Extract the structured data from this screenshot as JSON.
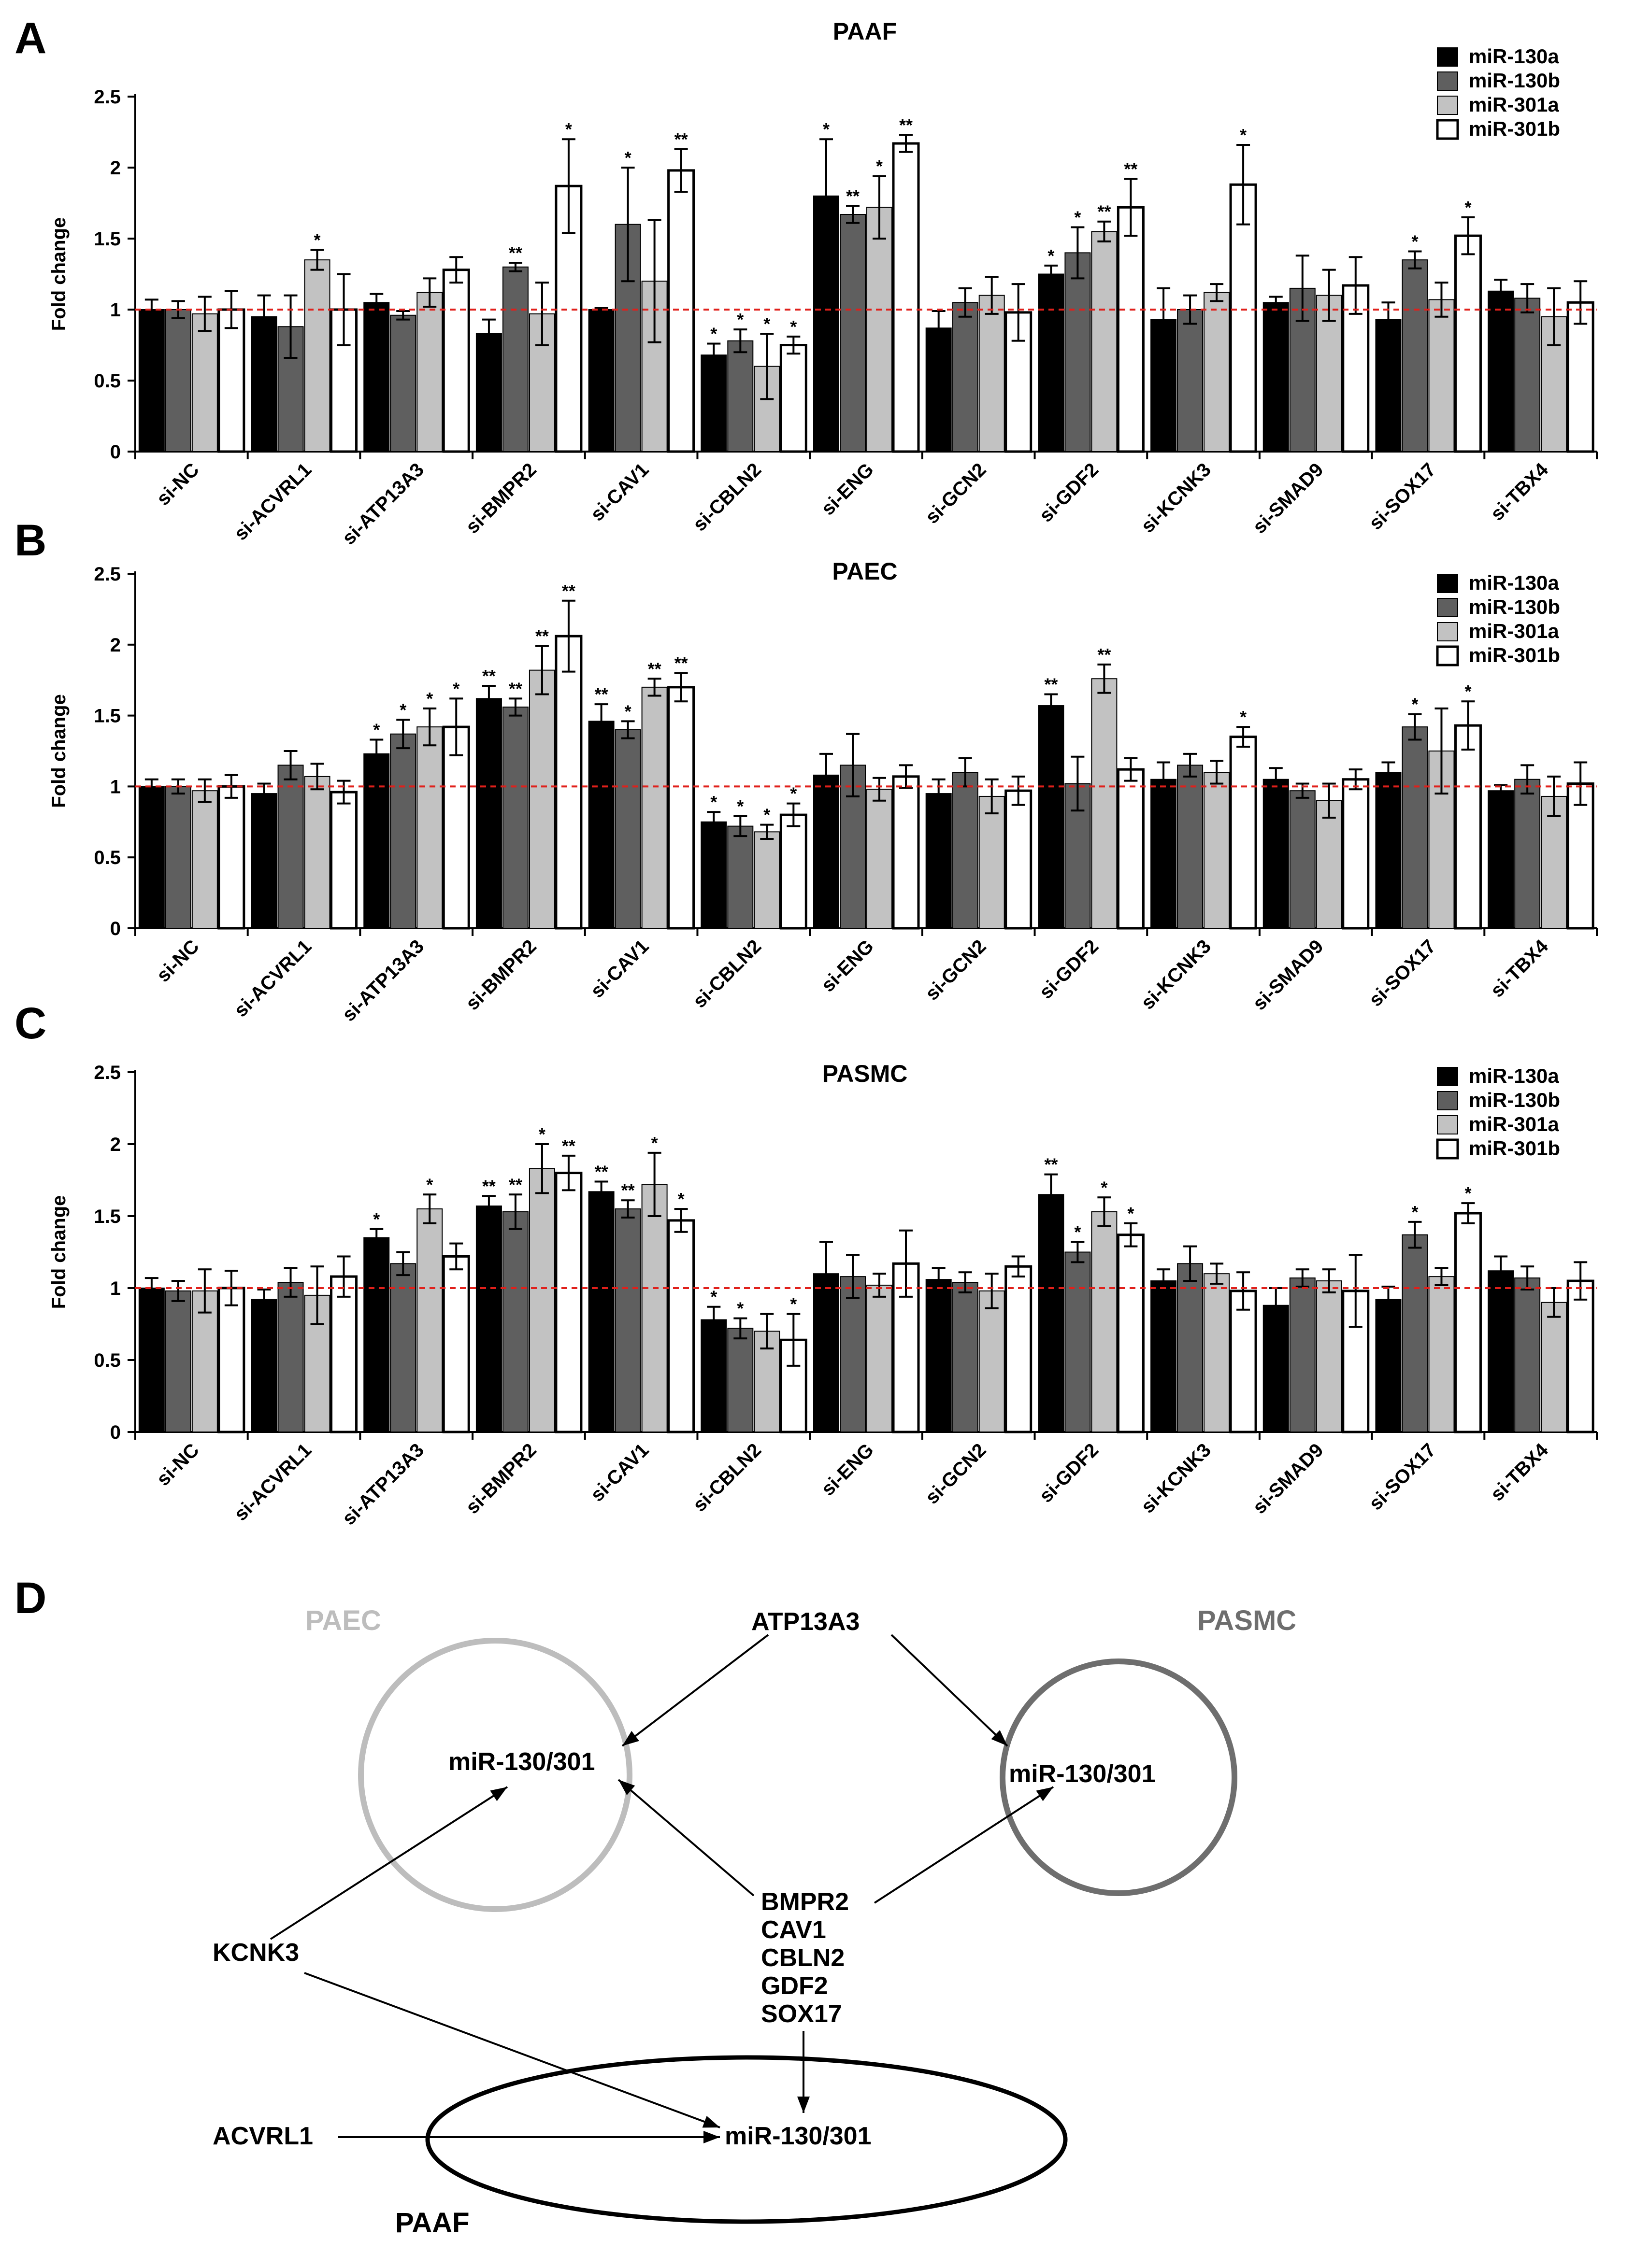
{
  "panel_letters": [
    "A",
    "B",
    "C",
    "D"
  ],
  "legend": [
    "miR-130a",
    "miR-130b",
    "miR-301a",
    "miR-301b"
  ],
  "colors": {
    "series": [
      "#000000",
      "#5f5f5f",
      "#c2c2c2",
      "#ffffff"
    ],
    "reference_line": "#e0201b",
    "paec_circle": "#bdbdbd",
    "pasmc_circle": "#6e6e6e",
    "paaf_ellipse": "#000000"
  },
  "chart_data": [
    {
      "type": "bar",
      "panel": "A",
      "title": "PAAF",
      "ylabel": "Fold change",
      "xlabel": "",
      "ylim": [
        0,
        2.5
      ],
      "yticks": [
        "0",
        "0.5",
        "1",
        "1.5",
        "2",
        "2.5"
      ],
      "reference_line": 1,
      "categories": [
        "si-NC",
        "si-ACVRL1",
        "si-ATP13A3",
        "si-BMPR2",
        "si-CAV1",
        "si-CBLN2",
        "si-ENG",
        "si-GCN2",
        "si-GDF2",
        "si-KCNK3",
        "si-SMAD9",
        "si-SOX17",
        "si-TBX4"
      ],
      "series": [
        {
          "name": "miR-130a",
          "values": [
            1.0,
            0.95,
            1.05,
            0.83,
            1.0,
            0.68,
            1.8,
            0.87,
            1.25,
            0.93,
            1.05,
            0.93,
            1.13
          ],
          "errors": [
            0.07,
            0.15,
            0.06,
            0.1,
            0.01,
            0.08,
            0.4,
            0.12,
            0.06,
            0.22,
            0.04,
            0.12,
            0.08
          ],
          "sig": [
            "",
            "",
            "",
            "",
            "",
            "*",
            "*",
            "",
            "*",
            "",
            "",
            "",
            ""
          ]
        },
        {
          "name": "miR-130b",
          "values": [
            1.0,
            0.88,
            0.96,
            1.3,
            1.6,
            0.78,
            1.67,
            1.05,
            1.4,
            1.0,
            1.15,
            1.35,
            1.08
          ],
          "errors": [
            0.06,
            0.22,
            0.03,
            0.03,
            0.4,
            0.08,
            0.06,
            0.1,
            0.18,
            0.1,
            0.23,
            0.06,
            0.1
          ],
          "sig": [
            "",
            "",
            "",
            "**",
            "*",
            "*",
            "**",
            "",
            "*",
            "",
            "",
            "*",
            ""
          ]
        },
        {
          "name": "miR-301a",
          "values": [
            0.97,
            1.35,
            1.12,
            0.97,
            1.2,
            0.6,
            1.72,
            1.1,
            1.55,
            1.12,
            1.1,
            1.07,
            0.95
          ],
          "errors": [
            0.12,
            0.07,
            0.1,
            0.22,
            0.43,
            0.23,
            0.22,
            0.13,
            0.07,
            0.06,
            0.18,
            0.12,
            0.2
          ],
          "sig": [
            "",
            "*",
            "",
            "",
            "",
            "*",
            "*",
            "",
            "**",
            "",
            "",
            "",
            ""
          ]
        },
        {
          "name": "miR-301b",
          "values": [
            1.0,
            1.0,
            1.28,
            1.87,
            1.98,
            0.75,
            2.17,
            0.98,
            1.72,
            1.88,
            1.17,
            1.52,
            1.05
          ],
          "errors": [
            0.13,
            0.25,
            0.09,
            0.33,
            0.15,
            0.06,
            0.06,
            0.2,
            0.2,
            0.28,
            0.2,
            0.13,
            0.15
          ],
          "sig": [
            "",
            "",
            "",
            "*",
            "**",
            "*",
            "**",
            "",
            "**",
            "*",
            "",
            "*",
            ""
          ]
        }
      ]
    },
    {
      "type": "bar",
      "panel": "B",
      "title": "PAEC",
      "ylabel": "Fold change",
      "xlabel": "",
      "ylim": [
        0,
        2.5
      ],
      "yticks": [
        "0",
        "0.5",
        "1",
        "1.5",
        "2",
        "2.5"
      ],
      "reference_line": 1,
      "categories": [
        "si-NC",
        "si-ACVRL1",
        "si-ATP13A3",
        "si-BMPR2",
        "si-CAV1",
        "si-CBLN2",
        "si-ENG",
        "si-GCN2",
        "si-GDF2",
        "si-KCNK3",
        "si-SMAD9",
        "si-SOX17",
        "si-TBX4"
      ],
      "series": [
        {
          "name": "miR-130a",
          "values": [
            1.0,
            0.95,
            1.23,
            1.62,
            1.46,
            0.75,
            1.08,
            0.95,
            1.57,
            1.05,
            1.05,
            1.1,
            0.97
          ],
          "errors": [
            0.05,
            0.07,
            0.1,
            0.09,
            0.12,
            0.07,
            0.15,
            0.1,
            0.08,
            0.12,
            0.08,
            0.07,
            0.04
          ],
          "sig": [
            "",
            "",
            "*",
            "**",
            "**",
            "*",
            "",
            "",
            "**",
            "",
            "",
            "",
            ""
          ]
        },
        {
          "name": "miR-130b",
          "values": [
            1.0,
            1.15,
            1.37,
            1.56,
            1.4,
            0.72,
            1.15,
            1.1,
            1.02,
            1.15,
            0.97,
            1.42,
            1.05
          ],
          "errors": [
            0.05,
            0.1,
            0.1,
            0.06,
            0.06,
            0.07,
            0.22,
            0.1,
            0.19,
            0.08,
            0.05,
            0.09,
            0.1
          ],
          "sig": [
            "",
            "",
            "*",
            "**",
            "*",
            "*",
            "",
            "",
            "",
            "",
            "",
            "*",
            ""
          ]
        },
        {
          "name": "miR-301a",
          "values": [
            0.97,
            1.07,
            1.42,
            1.82,
            1.7,
            0.68,
            0.98,
            0.93,
            1.76,
            1.1,
            0.9,
            1.25,
            0.93
          ],
          "errors": [
            0.08,
            0.09,
            0.13,
            0.17,
            0.06,
            0.05,
            0.08,
            0.12,
            0.1,
            0.08,
            0.12,
            0.3,
            0.14
          ],
          "sig": [
            "",
            "",
            "*",
            "**",
            "**",
            "*",
            "",
            "",
            "**",
            "",
            "",
            "",
            ""
          ]
        },
        {
          "name": "miR-301b",
          "values": [
            1.0,
            0.96,
            1.42,
            2.06,
            1.7,
            0.8,
            1.07,
            0.97,
            1.12,
            1.35,
            1.05,
            1.43,
            1.02
          ],
          "errors": [
            0.08,
            0.08,
            0.2,
            0.25,
            0.1,
            0.08,
            0.08,
            0.1,
            0.08,
            0.07,
            0.07,
            0.17,
            0.15
          ],
          "sig": [
            "",
            "",
            "*",
            "**",
            "**",
            "*",
            "",
            "",
            "",
            "*",
            "",
            "*",
            ""
          ]
        }
      ]
    },
    {
      "type": "bar",
      "panel": "C",
      "title": "PASMC",
      "ylabel": "Fold change",
      "xlabel": "",
      "ylim": [
        0,
        2.5
      ],
      "yticks": [
        "0",
        "0.5",
        "1",
        "1.5",
        "2",
        "2.5"
      ],
      "reference_line": 1,
      "categories": [
        "si-NC",
        "si-ACVRL1",
        "si-ATP13A3",
        "si-BMPR2",
        "si-CAV1",
        "si-CBLN2",
        "si-ENG",
        "si-GCN2",
        "si-GDF2",
        "si-KCNK3",
        "si-SMAD9",
        "si-SOX17",
        "si-TBX4"
      ],
      "series": [
        {
          "name": "miR-130a",
          "values": [
            1.0,
            0.92,
            1.35,
            1.57,
            1.67,
            0.78,
            1.1,
            1.06,
            1.65,
            1.05,
            0.88,
            0.92,
            1.12
          ],
          "errors": [
            0.07,
            0.07,
            0.06,
            0.07,
            0.07,
            0.09,
            0.22,
            0.08,
            0.14,
            0.08,
            0.12,
            0.09,
            0.1
          ],
          "sig": [
            "",
            "",
            "*",
            "**",
            "**",
            "*",
            "",
            "",
            "**",
            "",
            "",
            "",
            ""
          ]
        },
        {
          "name": "miR-130b",
          "values": [
            0.98,
            1.04,
            1.17,
            1.53,
            1.55,
            0.72,
            1.08,
            1.04,
            1.25,
            1.17,
            1.07,
            1.37,
            1.07
          ],
          "errors": [
            0.07,
            0.1,
            0.08,
            0.12,
            0.06,
            0.07,
            0.15,
            0.07,
            0.07,
            0.12,
            0.06,
            0.09,
            0.08
          ],
          "sig": [
            "",
            "",
            "",
            "**",
            "**",
            "*",
            "",
            "",
            "*",
            "",
            "",
            "*",
            ""
          ]
        },
        {
          "name": "miR-301a",
          "values": [
            0.98,
            0.95,
            1.55,
            1.83,
            1.72,
            0.7,
            1.02,
            0.98,
            1.53,
            1.1,
            1.05,
            1.08,
            0.9
          ],
          "errors": [
            0.15,
            0.2,
            0.1,
            0.17,
            0.22,
            0.12,
            0.08,
            0.12,
            0.1,
            0.07,
            0.08,
            0.06,
            0.1
          ],
          "sig": [
            "",
            "",
            "*",
            "*",
            "*",
            "",
            "",
            "",
            "*",
            "",
            "",
            "",
            ""
          ]
        },
        {
          "name": "miR-301b",
          "values": [
            1.0,
            1.08,
            1.22,
            1.8,
            1.47,
            0.64,
            1.17,
            1.15,
            1.37,
            0.98,
            0.98,
            1.52,
            1.05
          ],
          "errors": [
            0.12,
            0.14,
            0.09,
            0.12,
            0.08,
            0.18,
            0.23,
            0.07,
            0.08,
            0.13,
            0.25,
            0.07,
            0.13
          ],
          "sig": [
            "",
            "",
            "",
            "**",
            "*",
            "*",
            "",
            "",
            "*",
            "",
            "",
            "*",
            ""
          ]
        }
      ]
    }
  ],
  "diagram": {
    "cells": {
      "paec": "PAEC",
      "pasmc": "PASMC",
      "paaf": "PAAF"
    },
    "targets": {
      "paec": "miR-130/301",
      "pasmc": "miR-130/301",
      "paaf": "miR-130/301"
    },
    "genes": {
      "atp13a3": "ATP13A3",
      "kcnk3": "KCNK3",
      "acvrl1": "ACVRL1"
    },
    "gene_group": [
      "BMPR2",
      "CAV1",
      "CBLN2",
      "GDF2",
      "SOX17"
    ]
  }
}
